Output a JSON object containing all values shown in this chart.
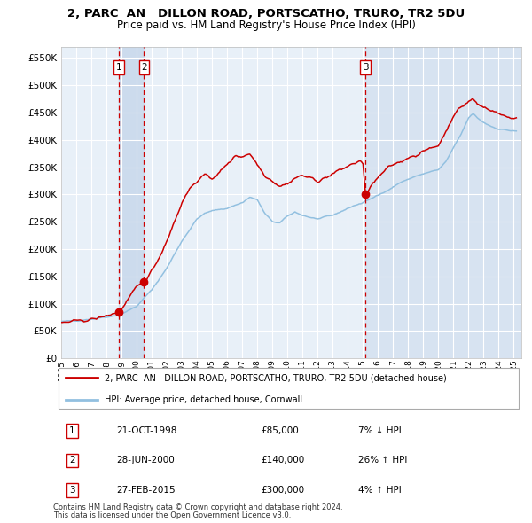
{
  "title": "2, PARC  AN   DILLON ROAD, PORTSCATHO, TRURO, TR2 5DU",
  "subtitle": "Price paid vs. HM Land Registry's House Price Index (HPI)",
  "xlim_start": 1995.0,
  "xlim_end": 2025.5,
  "ylim_min": 0,
  "ylim_max": 570000,
  "yticks": [
    0,
    50000,
    100000,
    150000,
    200000,
    250000,
    300000,
    350000,
    400000,
    450000,
    500000,
    550000
  ],
  "ytick_labels": [
    "£0",
    "£50K",
    "£100K",
    "£150K",
    "£200K",
    "£250K",
    "£300K",
    "£350K",
    "£400K",
    "£450K",
    "£500K",
    "£550K"
  ],
  "sale1_date": 1998.81,
  "sale1_price": 85000,
  "sale1_label": "1",
  "sale1_text": "21-OCT-1998",
  "sale1_amount": "£85,000",
  "sale1_hpi": "7% ↓ HPI",
  "sale2_date": 2000.49,
  "sale2_price": 140000,
  "sale2_label": "2",
  "sale2_text": "28-JUN-2000",
  "sale2_amount": "£140,000",
  "sale2_hpi": "26% ↑ HPI",
  "sale3_date": 2015.16,
  "sale3_price": 300000,
  "sale3_label": "3",
  "sale3_text": "27-FEB-2015",
  "sale3_amount": "£300,000",
  "sale3_hpi": "4% ↑ HPI",
  "line_color_price": "#cc0000",
  "line_color_hpi": "#92c0e0",
  "plot_bg": "#e8f0f8",
  "grid_color": "#ffffff",
  "shade_color": "#c8d8ec",
  "legend_label_price": "2, PARC  AN   DILLON ROAD, PORTSCATHO, TRURO, TR2 5DU (detached house)",
  "legend_label_hpi": "HPI: Average price, detached house, Cornwall",
  "footer1": "Contains HM Land Registry data © Crown copyright and database right 2024.",
  "footer2": "This data is licensed under the Open Government Licence v3.0."
}
